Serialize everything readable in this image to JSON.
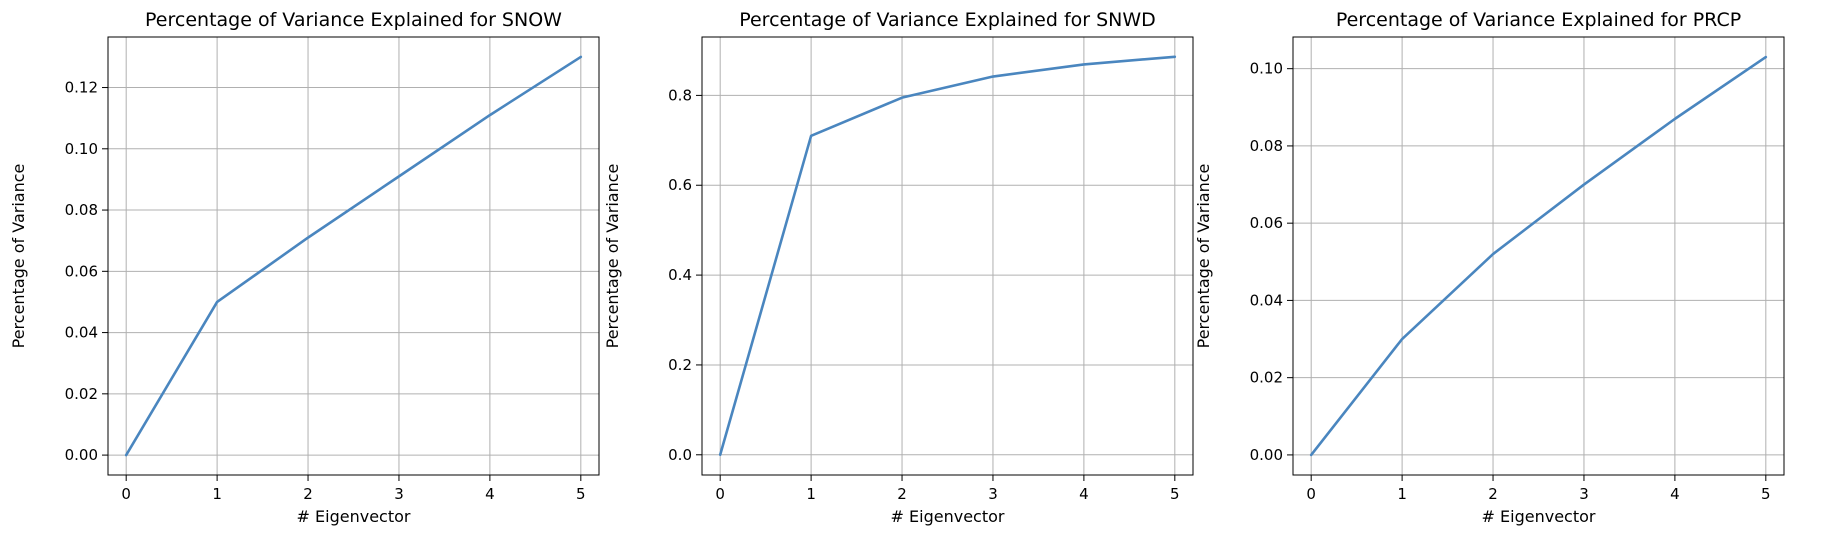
{
  "style": {
    "line_color": "#4a86bf",
    "grid_color": "#b0b0b0",
    "background": "#ffffff"
  },
  "chart_data": [
    {
      "type": "line",
      "title": "Percentage of Variance Explained for SNOW",
      "xlabel": "# Eigenvector",
      "ylabel": "Percentage of Variance",
      "x": [
        0,
        1,
        2,
        3,
        4,
        5
      ],
      "series": [
        {
          "values": [
            0.0,
            0.05,
            0.071,
            0.091,
            0.111,
            0.13
          ]
        }
      ],
      "xlim": [
        -0.2,
        5.2
      ],
      "ylim": [
        -0.0065,
        0.1365
      ],
      "xticks": [
        0,
        1,
        2,
        3,
        4,
        5
      ],
      "xtick_labels": [
        "0",
        "1",
        "2",
        "3",
        "4",
        "5"
      ],
      "yticks": [
        0,
        0.02,
        0.04,
        0.06,
        0.08,
        0.1,
        0.12
      ],
      "ytick_labels": [
        "0.00",
        "0.02",
        "0.04",
        "0.06",
        "0.08",
        "0.10",
        "0.12"
      ],
      "grid": true
    },
    {
      "type": "line",
      "title": "Percentage of Variance Explained for SNWD",
      "xlabel": "# Eigenvector",
      "ylabel": "Percentage of Variance",
      "x": [
        0,
        1,
        2,
        3,
        4,
        5
      ],
      "series": [
        {
          "values": [
            0.0,
            0.71,
            0.795,
            0.842,
            0.869,
            0.886
          ]
        }
      ],
      "xlim": [
        -0.2,
        5.2
      ],
      "ylim": [
        -0.045,
        0.93
      ],
      "xticks": [
        0,
        1,
        2,
        3,
        4,
        5
      ],
      "xtick_labels": [
        "0",
        "1",
        "2",
        "3",
        "4",
        "5"
      ],
      "yticks": [
        0,
        0.2,
        0.4,
        0.6,
        0.8
      ],
      "ytick_labels": [
        "0.0",
        "0.2",
        "0.4",
        "0.6",
        "0.8"
      ],
      "grid": true
    },
    {
      "type": "line",
      "title": "Percentage of Variance Explained for PRCP",
      "xlabel": "# Eigenvector",
      "ylabel": "Percentage of Variance",
      "x": [
        0,
        1,
        2,
        3,
        4,
        5
      ],
      "series": [
        {
          "values": [
            0.0,
            0.03,
            0.052,
            0.07,
            0.087,
            0.103
          ]
        }
      ],
      "xlim": [
        -0.2,
        5.2
      ],
      "ylim": [
        -0.0052,
        0.1082
      ],
      "xticks": [
        0,
        1,
        2,
        3,
        4,
        5
      ],
      "xtick_labels": [
        "0",
        "1",
        "2",
        "3",
        "4",
        "5"
      ],
      "yticks": [
        0,
        0.02,
        0.04,
        0.06,
        0.08,
        0.1
      ],
      "ytick_labels": [
        "0.00",
        "0.02",
        "0.04",
        "0.06",
        "0.08",
        "0.10"
      ],
      "grid": true
    }
  ]
}
